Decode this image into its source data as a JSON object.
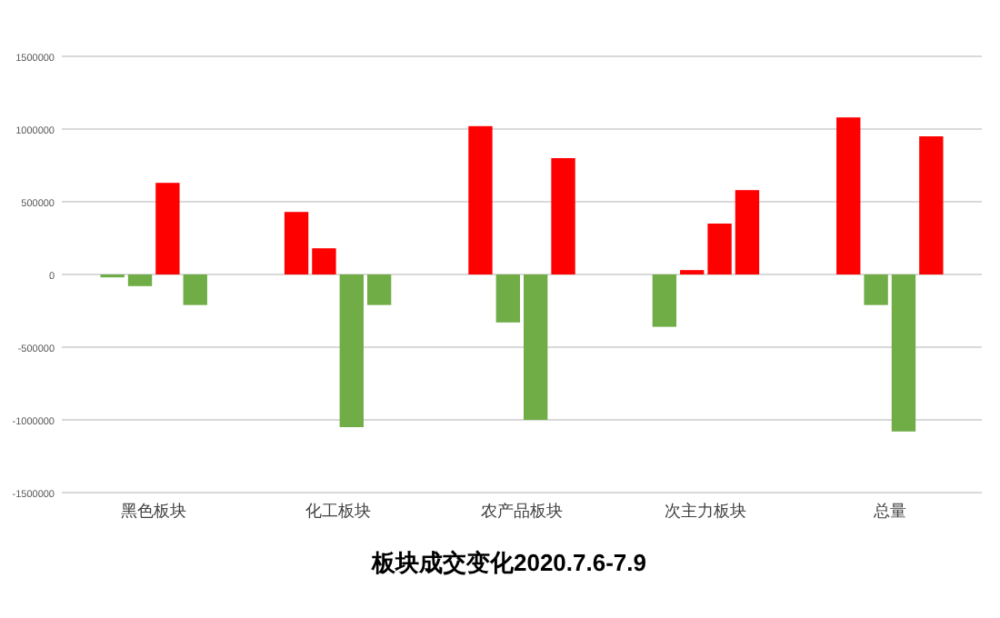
{
  "chart_data": {
    "type": "bar",
    "title": "板块成交变化2020.7.6-7.9",
    "categories": [
      "黑色板块",
      "化工板块",
      "农产品板块",
      "次主力板块",
      "总量"
    ],
    "series": [
      {
        "values": [
          -20000,
          430000,
          1020000,
          -360000,
          1080000
        ],
        "colors": [
          "#70ad47",
          "#ff0000",
          "#ff0000",
          "#70ad47",
          "#ff0000"
        ]
      },
      {
        "values": [
          -80000,
          180000,
          -330000,
          30000,
          -210000
        ],
        "colors": [
          "#70ad47",
          "#ff0000",
          "#70ad47",
          "#ff0000",
          "#70ad47"
        ]
      },
      {
        "values": [
          630000,
          -1050000,
          -1000000,
          350000,
          -1080000
        ],
        "colors": [
          "#ff0000",
          "#70ad47",
          "#70ad47",
          "#ff0000",
          "#70ad47"
        ]
      },
      {
        "values": [
          -210000,
          -210000,
          800000,
          580000,
          950000
        ],
        "colors": [
          "#70ad47",
          "#70ad47",
          "#ff0000",
          "#ff0000",
          "#ff0000"
        ]
      }
    ],
    "ylim": [
      -1500000,
      1500000
    ],
    "yticks": [
      -1500000,
      -1000000,
      -500000,
      0,
      500000,
      1000000,
      1500000
    ],
    "grid": "y"
  }
}
